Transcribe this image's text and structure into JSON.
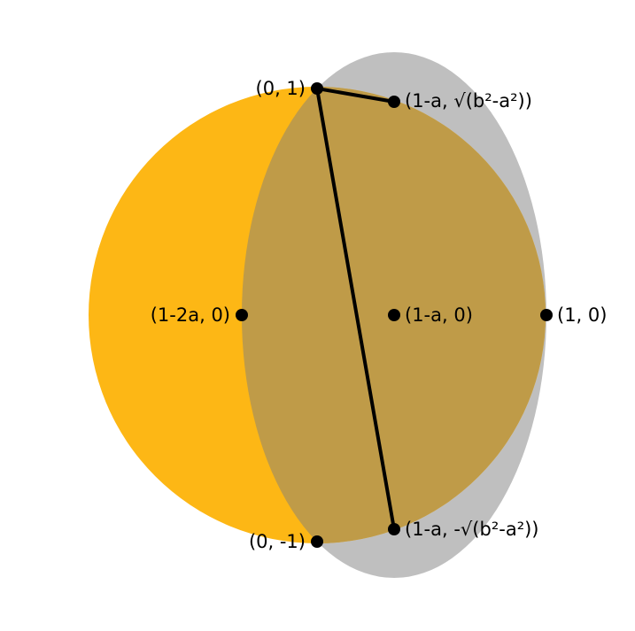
{
  "colors": {
    "background": "#ffffff",
    "circle_fill": "#fdb715",
    "ellipse_fill": "#bfbfbf",
    "overlap_fill": "#bf9b48",
    "stroke": "#000000",
    "point": "#000000"
  },
  "shapes": {
    "circle": {
      "center": [
        0,
        0
      ],
      "radius": 1
    },
    "ellipse": {
      "center_label": "(1-a, 0)",
      "semi_axis_x": "a",
      "semi_axis_y": "b"
    }
  },
  "points": {
    "top": "(0, 1)",
    "bottom": "(0, -1)",
    "left_vertex": "(1-2a, 0)",
    "center": "(1-a, 0)",
    "right": "(1, 0)",
    "upper_ellipse_point": "(1-a, √(b²-a²))",
    "lower_ellipse_point": "(1-a, -√(b²-a²))"
  }
}
